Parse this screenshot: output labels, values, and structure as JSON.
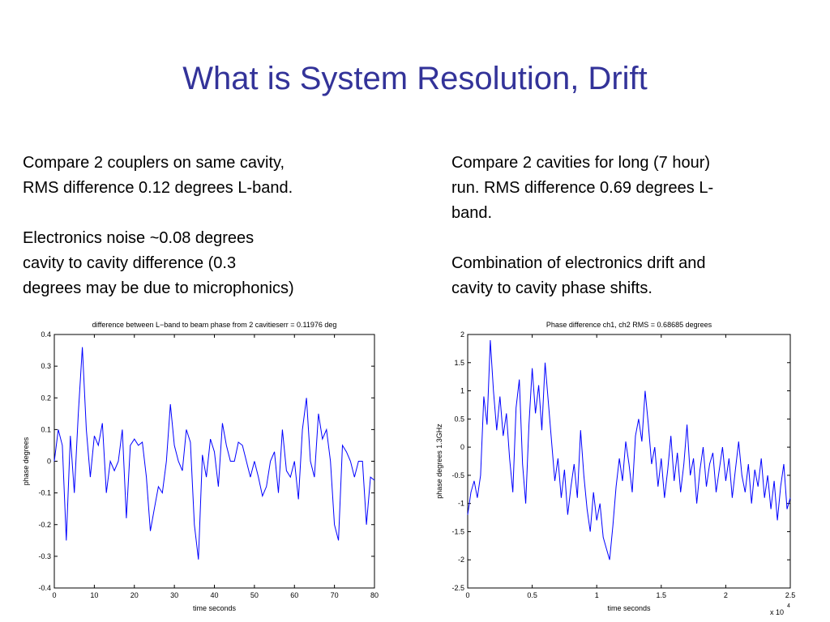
{
  "title": "What is System Resolution, Drift",
  "left_text": [
    [
      "Compare 2 couplers on same cavity,",
      "RMS difference 0.12 degrees L-band."
    ],
    [
      "Electronics noise ~0.08 degrees",
      "cavity to cavity difference (0.3",
      "degrees may be due to microphonics)"
    ]
  ],
  "right_text": [
    [
      "Compare 2 cavities for long (7 hour)",
      "run. RMS difference 0.69 degrees L-",
      "band."
    ],
    [
      "Combination of electronics drift and",
      "cavity to cavity phase shifts."
    ]
  ],
  "chart_data": [
    {
      "type": "line",
      "title": "difference between L−band to beam phase from 2 cavitieserr = 0.11976 deg",
      "x_label": "time seconds",
      "y_label": "phase degrees",
      "color": "#0000ff",
      "xlim": [
        0,
        80
      ],
      "xticks": [
        0,
        10,
        20,
        30,
        40,
        50,
        60,
        70,
        80
      ],
      "ylim": [
        -0.4,
        0.4
      ],
      "yticks": [
        -0.4,
        -0.3,
        -0.2,
        -0.1,
        0,
        0.1,
        0.2,
        0.3,
        0.4
      ],
      "x": [
        0,
        1,
        2,
        3,
        4,
        5,
        6,
        7,
        8,
        9,
        10,
        11,
        12,
        13,
        14,
        15,
        16,
        17,
        18,
        19,
        20,
        21,
        22,
        23,
        24,
        25,
        26,
        27,
        28,
        29,
        30,
        31,
        32,
        33,
        34,
        35,
        36,
        37,
        38,
        39,
        40,
        41,
        42,
        43,
        44,
        45,
        46,
        47,
        48,
        49,
        50,
        51,
        52,
        53,
        54,
        55,
        56,
        57,
        58,
        59,
        60,
        61,
        62,
        63,
        64,
        65,
        66,
        67,
        68,
        69,
        70,
        71,
        72,
        73,
        74,
        75,
        76,
        77,
        78,
        79,
        80
      ],
      "values": [
        0.0,
        0.1,
        0.05,
        -0.25,
        0.08,
        -0.1,
        0.15,
        0.36,
        0.1,
        -0.05,
        0.08,
        0.05,
        0.12,
        -0.1,
        0.0,
        -0.03,
        0.0,
        0.1,
        -0.18,
        0.05,
        0.07,
        0.05,
        0.06,
        -0.05,
        -0.22,
        -0.15,
        -0.08,
        -0.1,
        0.0,
        0.18,
        0.05,
        0.0,
        -0.03,
        0.1,
        0.06,
        -0.2,
        -0.31,
        0.02,
        -0.05,
        0.07,
        0.03,
        -0.08,
        0.12,
        0.05,
        0.0,
        0.0,
        0.06,
        0.05,
        0.0,
        -0.05,
        0.0,
        -0.05,
        -0.11,
        -0.08,
        0.0,
        0.03,
        -0.1,
        0.1,
        -0.03,
        -0.05,
        0.0,
        -0.12,
        0.1,
        0.2,
        0.0,
        -0.05,
        0.15,
        0.07,
        0.1,
        0.0,
        -0.2,
        -0.25,
        0.05,
        0.03,
        0.0,
        -0.05,
        0.0,
        0.0,
        -0.2,
        -0.05,
        -0.06
      ]
    },
    {
      "type": "line",
      "title": "Phase difference ch1, ch2 RMS = 0.68685 degrees",
      "x_label": "time seconds",
      "y_label": "phase degrees 1.3GHz",
      "color": "#0000ff",
      "x_scale_label": "x 10",
      "x_scale_exponent": "4",
      "xlim": [
        0,
        2.5
      ],
      "xticks": [
        0,
        0.5,
        1,
        1.5,
        2,
        2.5
      ],
      "ylim": [
        -2.5,
        2
      ],
      "yticks": [
        -2.5,
        -2,
        -1.5,
        -1,
        -0.5,
        0,
        0.5,
        1,
        1.5,
        2
      ],
      "x": [
        0,
        0.025,
        0.05,
        0.075,
        0.1,
        0.125,
        0.15,
        0.175,
        0.2,
        0.225,
        0.25,
        0.275,
        0.3,
        0.325,
        0.35,
        0.375,
        0.4,
        0.425,
        0.45,
        0.475,
        0.5,
        0.525,
        0.55,
        0.575,
        0.6,
        0.625,
        0.65,
        0.675,
        0.7,
        0.725,
        0.75,
        0.775,
        0.8,
        0.825,
        0.85,
        0.875,
        0.9,
        0.925,
        0.95,
        0.975,
        1,
        1.025,
        1.05,
        1.075,
        1.1,
        1.125,
        1.15,
        1.175,
        1.2,
        1.225,
        1.25,
        1.275,
        1.3,
        1.325,
        1.35,
        1.375,
        1.4,
        1.425,
        1.45,
        1.475,
        1.5,
        1.525,
        1.55,
        1.575,
        1.6,
        1.625,
        1.65,
        1.675,
        1.7,
        1.725,
        1.75,
        1.775,
        1.8,
        1.825,
        1.85,
        1.875,
        1.9,
        1.925,
        1.95,
        1.975,
        2,
        2.025,
        2.05,
        2.075,
        2.1,
        2.125,
        2.15,
        2.175,
        2.2,
        2.225,
        2.25,
        2.275,
        2.3,
        2.325,
        2.35,
        2.375,
        2.4,
        2.425,
        2.45,
        2.475,
        2.5
      ],
      "values": [
        -1.2,
        -0.8,
        -0.6,
        -0.9,
        -0.5,
        0.9,
        0.4,
        1.9,
        1.0,
        0.3,
        0.9,
        0.2,
        0.6,
        -0.2,
        -0.8,
        0.7,
        1.2,
        -0.3,
        -1.0,
        0.4,
        1.4,
        0.6,
        1.1,
        0.3,
        1.5,
        0.8,
        0.1,
        -0.6,
        -0.2,
        -0.9,
        -0.4,
        -1.2,
        -0.7,
        -0.3,
        -0.9,
        0.3,
        -0.5,
        -1.1,
        -1.5,
        -0.8,
        -1.3,
        -1.0,
        -1.6,
        -1.8,
        -2.0,
        -1.4,
        -0.7,
        -0.2,
        -0.6,
        0.1,
        -0.3,
        -0.8,
        0.2,
        0.5,
        0.1,
        1.0,
        0.4,
        -0.3,
        0.0,
        -0.7,
        -0.2,
        -0.9,
        -0.4,
        0.2,
        -0.6,
        -0.1,
        -0.8,
        -0.3,
        0.4,
        -0.5,
        -0.2,
        -1.0,
        -0.4,
        0.0,
        -0.7,
        -0.3,
        -0.1,
        -0.8,
        -0.4,
        0.0,
        -0.6,
        -0.2,
        -0.9,
        -0.4,
        0.1,
        -0.5,
        -0.8,
        -0.3,
        -1.0,
        -0.4,
        -0.7,
        -0.2,
        -0.9,
        -0.5,
        -1.1,
        -0.6,
        -1.3,
        -0.7,
        -0.3,
        -1.1,
        -0.9
      ]
    }
  ]
}
